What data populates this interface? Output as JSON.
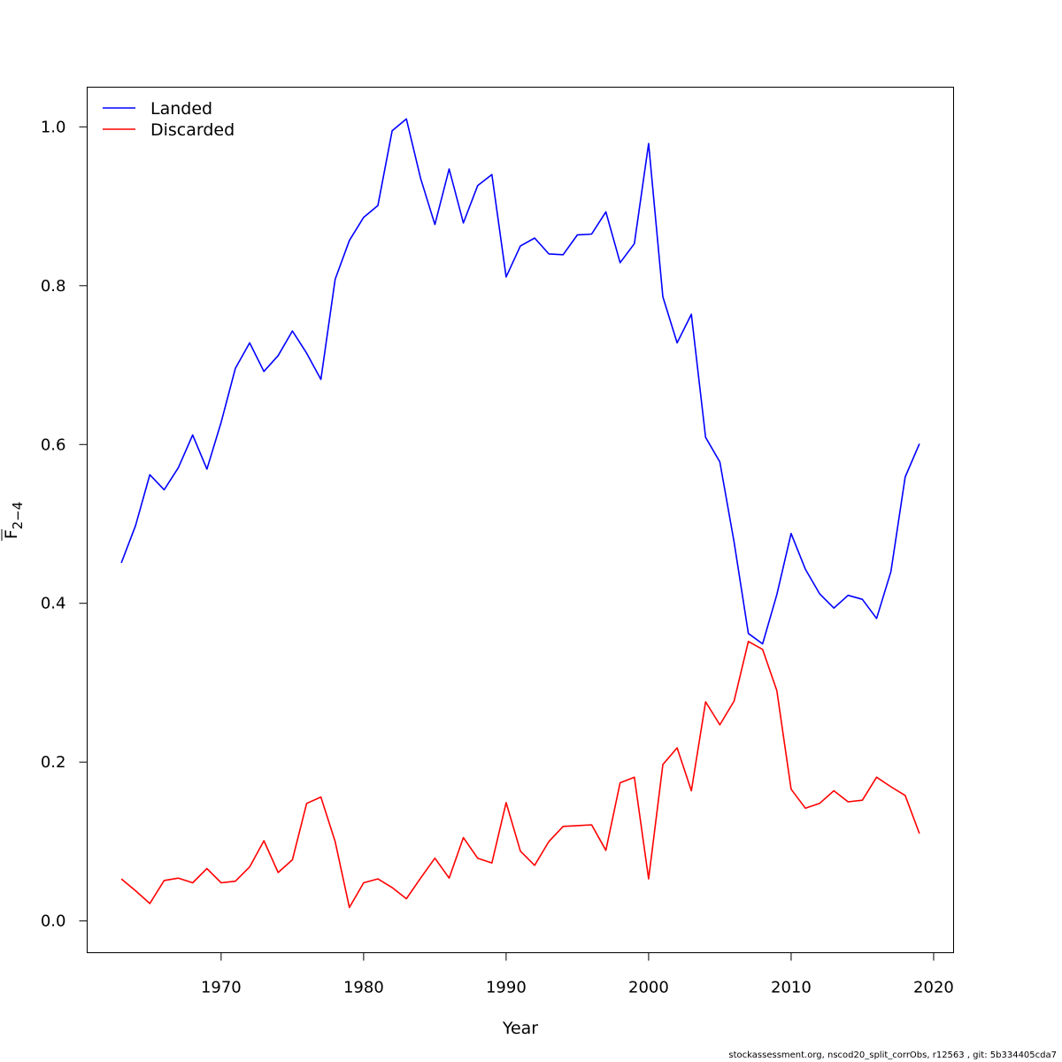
{
  "chart_data": {
    "type": "line",
    "title": "",
    "xlabel": "Year",
    "ylabel_main": "F",
    "ylabel_sub": "2−4",
    "xlim": [
      1960.6,
      2021.4
    ],
    "ylim": [
      -0.04,
      1.05
    ],
    "xticks": [
      1970,
      1980,
      1990,
      2000,
      2010,
      2020
    ],
    "yticks": [
      "0.0",
      "0.2",
      "0.4",
      "0.6",
      "0.8",
      "1.0"
    ],
    "legend_position": "top-left",
    "grid": false,
    "x": [
      1963,
      1964,
      1965,
      1966,
      1967,
      1968,
      1969,
      1970,
      1971,
      1972,
      1973,
      1974,
      1975,
      1976,
      1977,
      1978,
      1979,
      1980,
      1981,
      1982,
      1983,
      1984,
      1985,
      1986,
      1987,
      1988,
      1989,
      1990,
      1991,
      1992,
      1993,
      1994,
      1995,
      1996,
      1997,
      1998,
      1999,
      2000,
      2001,
      2002,
      2003,
      2004,
      2005,
      2006,
      2007,
      2008,
      2009,
      2010,
      2011,
      2012,
      2013,
      2014,
      2015,
      2016,
      2017,
      2018,
      2019
    ],
    "series": [
      {
        "name": "Landed",
        "color": "#0000ff",
        "values": [
          0.451,
          0.498,
          0.562,
          0.543,
          0.571,
          0.612,
          0.569,
          0.628,
          0.696,
          0.728,
          0.692,
          0.712,
          0.743,
          0.715,
          0.682,
          0.808,
          0.857,
          0.886,
          0.901,
          0.995,
          1.01,
          0.935,
          0.877,
          0.947,
          0.879,
          0.926,
          0.94,
          0.811,
          0.85,
          0.86,
          0.84,
          0.839,
          0.864,
          0.865,
          0.893,
          0.829,
          0.853,
          0.979,
          0.786,
          0.728,
          0.764,
          0.609,
          0.578,
          0.477,
          0.362,
          0.349,
          0.411,
          0.488,
          0.443,
          0.412,
          0.394,
          0.41,
          0.405,
          0.381,
          0.44,
          0.559,
          0.601
        ]
      },
      {
        "name": "Discarded",
        "color": "#ff0000",
        "values": [
          0.053,
          0.038,
          0.022,
          0.051,
          0.054,
          0.048,
          0.066,
          0.048,
          0.05,
          0.068,
          0.101,
          0.061,
          0.077,
          0.148,
          0.156,
          0.1,
          0.017,
          0.048,
          0.053,
          0.042,
          0.028,
          0.054,
          0.079,
          0.054,
          0.105,
          0.079,
          0.073,
          0.149,
          0.088,
          0.07,
          0.1,
          0.119,
          0.12,
          0.121,
          0.089,
          0.174,
          0.181,
          0.053,
          0.197,
          0.218,
          0.164,
          0.276,
          0.247,
          0.277,
          0.352,
          0.342,
          0.29,
          0.166,
          0.142,
          0.148,
          0.164,
          0.15,
          0.152,
          0.181,
          0.169,
          0.158,
          0.11
        ]
      }
    ]
  },
  "footer": "stockassessment.org, nscod20_split_corrObs, r12563 , git: 5b334405cda7"
}
